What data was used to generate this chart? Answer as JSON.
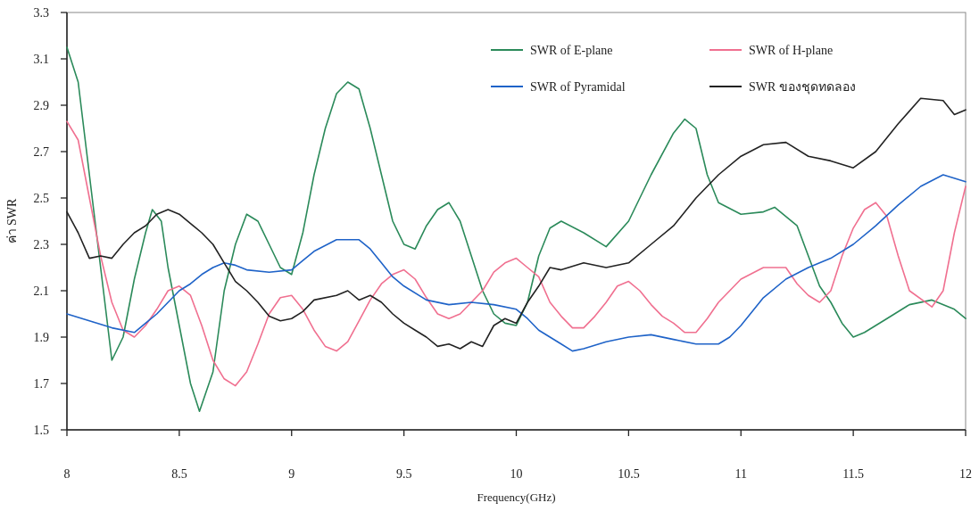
{
  "chart_data": {
    "type": "line",
    "xlabel": "Frequency(GHz)",
    "ylabel": "ค่า SWR",
    "xlim": [
      8,
      12
    ],
    "ylim": [
      1.5,
      3.3
    ],
    "xticks": [
      8,
      8.5,
      9,
      9.5,
      10,
      10.5,
      11,
      11.5,
      12
    ],
    "yticks": [
      1.5,
      1.7,
      1.9,
      2.1,
      2.3,
      2.5,
      2.7,
      2.9,
      3.1,
      3.3
    ],
    "grid": false,
    "legend": "top right",
    "marker": "none",
    "line_style": "solid",
    "series": [
      {
        "name": "SWR of E-plane",
        "color": "#2b8a5a",
        "x": [
          8.0,
          8.05,
          8.1,
          8.15,
          8.2,
          8.25,
          8.3,
          8.35,
          8.38,
          8.42,
          8.45,
          8.5,
          8.55,
          8.59,
          8.65,
          8.7,
          8.75,
          8.8,
          8.85,
          8.9,
          8.95,
          9.0,
          9.05,
          9.1,
          9.15,
          9.2,
          9.25,
          9.3,
          9.35,
          9.4,
          9.45,
          9.5,
          9.55,
          9.6,
          9.65,
          9.7,
          9.75,
          9.8,
          9.85,
          9.9,
          9.95,
          10.0,
          10.05,
          10.1,
          10.15,
          10.2,
          10.3,
          10.4,
          10.5,
          10.6,
          10.7,
          10.75,
          10.8,
          10.85,
          10.9,
          11.0,
          11.1,
          11.15,
          11.25,
          11.3,
          11.35,
          11.4,
          11.45,
          11.5,
          11.55,
          11.65,
          11.75,
          11.85,
          11.95,
          12.0
        ],
        "values": [
          3.15,
          3.0,
          2.6,
          2.2,
          1.8,
          1.9,
          2.15,
          2.35,
          2.45,
          2.4,
          2.2,
          1.95,
          1.7,
          1.58,
          1.75,
          2.1,
          2.3,
          2.43,
          2.4,
          2.3,
          2.2,
          2.17,
          2.35,
          2.6,
          2.8,
          2.95,
          3.0,
          2.97,
          2.8,
          2.6,
          2.4,
          2.3,
          2.28,
          2.38,
          2.45,
          2.48,
          2.4,
          2.25,
          2.1,
          2.0,
          1.96,
          1.95,
          2.05,
          2.25,
          2.37,
          2.4,
          2.35,
          2.29,
          2.4,
          2.6,
          2.78,
          2.84,
          2.8,
          2.6,
          2.48,
          2.43,
          2.44,
          2.46,
          2.38,
          2.25,
          2.12,
          2.05,
          1.96,
          1.9,
          1.92,
          1.98,
          2.04,
          2.06,
          2.02,
          1.98
        ]
      },
      {
        "name": "SWR of H-plane",
        "color": "#f07090",
        "x": [
          8.0,
          8.05,
          8.1,
          8.15,
          8.2,
          8.25,
          8.3,
          8.35,
          8.4,
          8.45,
          8.5,
          8.55,
          8.6,
          8.65,
          8.7,
          8.75,
          8.8,
          8.85,
          8.9,
          8.95,
          9.0,
          9.05,
          9.1,
          9.15,
          9.2,
          9.25,
          9.3,
          9.35,
          9.4,
          9.45,
          9.5,
          9.55,
          9.6,
          9.65,
          9.7,
          9.75,
          9.8,
          9.85,
          9.9,
          9.95,
          10.0,
          10.05,
          10.1,
          10.15,
          10.2,
          10.25,
          10.3,
          10.35,
          10.4,
          10.45,
          10.5,
          10.55,
          10.6,
          10.65,
          10.7,
          10.75,
          10.8,
          10.85,
          10.9,
          10.95,
          11.0,
          11.1,
          11.2,
          11.25,
          11.3,
          11.35,
          11.4,
          11.45,
          11.5,
          11.55,
          11.6,
          11.65,
          11.7,
          11.75,
          11.85,
          11.9,
          11.95,
          12.0
        ],
        "values": [
          2.83,
          2.75,
          2.5,
          2.25,
          2.05,
          1.93,
          1.9,
          1.95,
          2.02,
          2.1,
          2.12,
          2.08,
          1.95,
          1.8,
          1.72,
          1.69,
          1.75,
          1.87,
          2.0,
          2.07,
          2.08,
          2.02,
          1.93,
          1.86,
          1.84,
          1.88,
          1.97,
          2.06,
          2.13,
          2.17,
          2.19,
          2.15,
          2.07,
          2.0,
          1.98,
          2.0,
          2.05,
          2.1,
          2.18,
          2.22,
          2.24,
          2.2,
          2.16,
          2.05,
          1.99,
          1.94,
          1.94,
          1.99,
          2.05,
          2.12,
          2.14,
          2.1,
          2.04,
          1.99,
          1.96,
          1.92,
          1.92,
          1.98,
          2.05,
          2.1,
          2.15,
          2.2,
          2.2,
          2.13,
          2.08,
          2.05,
          2.1,
          2.25,
          2.37,
          2.45,
          2.48,
          2.42,
          2.25,
          2.1,
          2.03,
          2.1,
          2.35,
          2.55
        ]
      },
      {
        "name": "SWR of Pyramidal",
        "color": "#1f63c8",
        "x": [
          8.0,
          8.1,
          8.2,
          8.3,
          8.35,
          8.4,
          8.45,
          8.5,
          8.55,
          8.6,
          8.65,
          8.7,
          8.75,
          8.8,
          8.9,
          9.0,
          9.05,
          9.1,
          9.2,
          9.3,
          9.35,
          9.4,
          9.45,
          9.5,
          9.6,
          9.7,
          9.8,
          9.9,
          10.0,
          10.05,
          10.1,
          10.2,
          10.25,
          10.3,
          10.4,
          10.5,
          10.6,
          10.7,
          10.8,
          10.85,
          10.9,
          10.95,
          11.0,
          11.1,
          11.2,
          11.3,
          11.4,
          11.5,
          11.6,
          11.7,
          11.8,
          11.9,
          12.0
        ],
        "values": [
          2.0,
          1.97,
          1.94,
          1.92,
          1.96,
          2.0,
          2.05,
          2.1,
          2.13,
          2.17,
          2.2,
          2.22,
          2.21,
          2.19,
          2.18,
          2.19,
          2.23,
          2.27,
          2.32,
          2.32,
          2.28,
          2.22,
          2.16,
          2.12,
          2.06,
          2.04,
          2.05,
          2.04,
          2.02,
          1.98,
          1.93,
          1.87,
          1.84,
          1.85,
          1.88,
          1.9,
          1.91,
          1.89,
          1.87,
          1.87,
          1.87,
          1.9,
          1.95,
          2.07,
          2.15,
          2.2,
          2.24,
          2.3,
          2.38,
          2.47,
          2.55,
          2.6,
          2.57
        ]
      },
      {
        "name": "SWR ของชุดทดลอง",
        "color": "#222222",
        "x": [
          8.0,
          8.05,
          8.1,
          8.15,
          8.2,
          8.25,
          8.3,
          8.35,
          8.4,
          8.45,
          8.5,
          8.55,
          8.6,
          8.65,
          8.7,
          8.75,
          8.8,
          8.85,
          8.9,
          8.95,
          9.0,
          9.05,
          9.1,
          9.2,
          9.25,
          9.3,
          9.35,
          9.4,
          9.45,
          9.5,
          9.55,
          9.6,
          9.65,
          9.7,
          9.75,
          9.8,
          9.85,
          9.9,
          9.95,
          10.0,
          10.05,
          10.1,
          10.15,
          10.2,
          10.3,
          10.4,
          10.5,
          10.6,
          10.7,
          10.8,
          10.9,
          11.0,
          11.1,
          11.2,
          11.3,
          11.4,
          11.5,
          11.6,
          11.7,
          11.8,
          11.9,
          11.95,
          12.0
        ],
        "values": [
          2.44,
          2.35,
          2.24,
          2.25,
          2.24,
          2.3,
          2.35,
          2.38,
          2.43,
          2.45,
          2.43,
          2.39,
          2.35,
          2.3,
          2.22,
          2.14,
          2.1,
          2.05,
          1.99,
          1.97,
          1.98,
          2.01,
          2.06,
          2.08,
          2.1,
          2.06,
          2.08,
          2.05,
          2.0,
          1.96,
          1.93,
          1.9,
          1.86,
          1.87,
          1.85,
          1.88,
          1.86,
          1.95,
          1.98,
          1.96,
          2.05,
          2.12,
          2.2,
          2.19,
          2.22,
          2.2,
          2.22,
          2.3,
          2.38,
          2.5,
          2.6,
          2.68,
          2.73,
          2.74,
          2.68,
          2.66,
          2.63,
          2.7,
          2.82,
          2.93,
          2.92,
          2.86,
          2.88
        ]
      }
    ]
  }
}
